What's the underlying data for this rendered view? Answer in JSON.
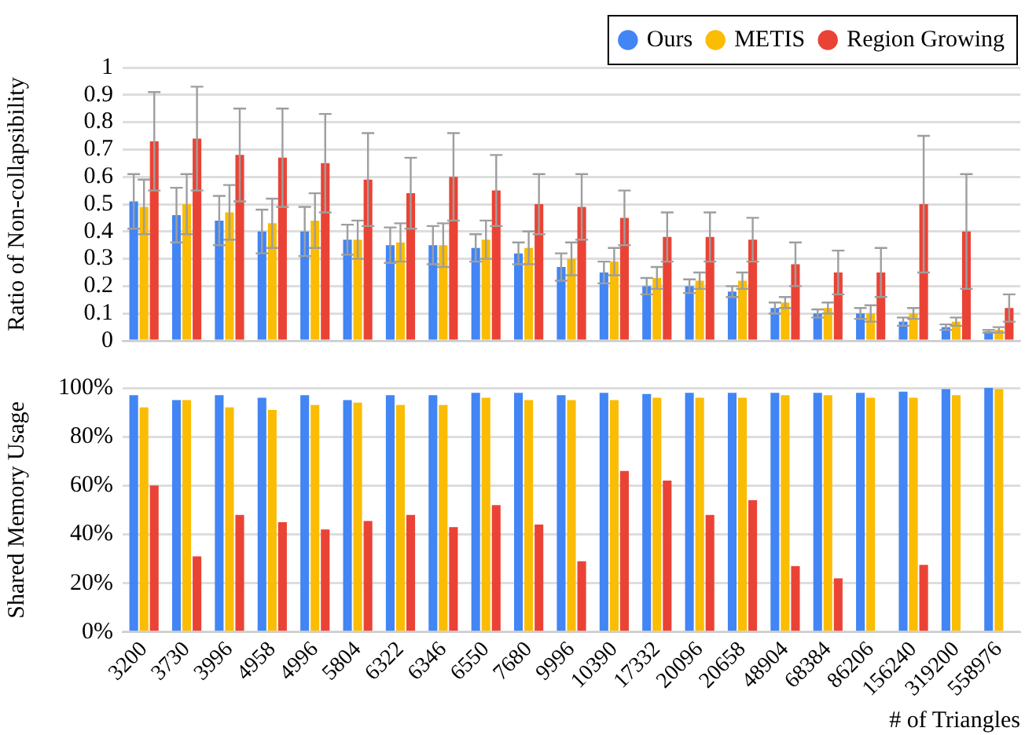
{
  "chart_data": [
    {
      "type": "bar",
      "ylabel": "Ratio of Non-collapsibility",
      "categories": [
        "3200",
        "3730",
        "3996",
        "4958",
        "4996",
        "5804",
        "6322",
        "6346",
        "6550",
        "7680",
        "9996",
        "10390",
        "17332",
        "20096",
        "20658",
        "48904",
        "68384",
        "86206",
        "156240",
        "319200",
        "558976"
      ],
      "series": [
        {
          "name": "Ours",
          "color": "#4285f4",
          "values": [
            0.51,
            0.46,
            0.44,
            0.4,
            0.4,
            0.37,
            0.35,
            0.35,
            0.34,
            0.32,
            0.27,
            0.25,
            0.2,
            0.2,
            0.18,
            0.12,
            0.1,
            0.1,
            0.07,
            0.05,
            0.035
          ],
          "errors": [
            0.1,
            0.1,
            0.09,
            0.08,
            0.09,
            0.055,
            0.065,
            0.07,
            0.05,
            0.04,
            0.05,
            0.04,
            0.03,
            0.025,
            0.02,
            0.02,
            0.015,
            0.02,
            0.015,
            0.01,
            0.005
          ]
        },
        {
          "name": "METIS",
          "color": "#fbbc04",
          "values": [
            0.49,
            0.5,
            0.47,
            0.43,
            0.44,
            0.37,
            0.36,
            0.35,
            0.37,
            0.34,
            0.3,
            0.29,
            0.23,
            0.22,
            0.22,
            0.14,
            0.12,
            0.1,
            0.1,
            0.07,
            0.04
          ],
          "errors": [
            0.1,
            0.11,
            0.1,
            0.09,
            0.1,
            0.07,
            0.07,
            0.08,
            0.07,
            0.06,
            0.06,
            0.05,
            0.04,
            0.03,
            0.03,
            0.02,
            0.02,
            0.03,
            0.02,
            0.015,
            0.01
          ]
        },
        {
          "name": "Region Growing",
          "color": "#ea4335",
          "values": [
            0.73,
            0.74,
            0.68,
            0.67,
            0.65,
            0.59,
            0.54,
            0.6,
            0.55,
            0.5,
            0.49,
            0.45,
            0.38,
            0.38,
            0.37,
            0.28,
            0.25,
            0.25,
            0.5,
            0.4,
            0.12
          ],
          "errors": [
            0.18,
            0.19,
            0.17,
            0.18,
            0.18,
            0.17,
            0.13,
            0.16,
            0.13,
            0.11,
            0.12,
            0.1,
            0.09,
            0.09,
            0.08,
            0.08,
            0.08,
            0.09,
            0.25,
            0.21,
            0.05
          ]
        }
      ],
      "ylim": [
        0,
        1
      ],
      "yticks": [
        0,
        0.1,
        0.2,
        0.3,
        0.4,
        0.5,
        0.6,
        0.7,
        0.8,
        0.9,
        1
      ],
      "grid": "y",
      "legend": "top right",
      "tick_labels": "y"
    },
    {
      "type": "bar",
      "ylabel": "Shared Memory Usage",
      "xlabel": "# of Triangles",
      "categories": [
        "3200",
        "3730",
        "3996",
        "4958",
        "4996",
        "5804",
        "6322",
        "6346",
        "6550",
        "7680",
        "9996",
        "10390",
        "17332",
        "20096",
        "20658",
        "48904",
        "68384",
        "86206",
        "156240",
        "319200",
        "558976"
      ],
      "series": [
        {
          "color": "#4285f4",
          "values": [
            97,
            95,
            97,
            96,
            97,
            95,
            97,
            97,
            98,
            98,
            97,
            98,
            97.5,
            98,
            98,
            98,
            98,
            98,
            98.5,
            99.5,
            100
          ]
        },
        {
          "color": "#fbbc04",
          "values": [
            92,
            95,
            92,
            91,
            93,
            94,
            93,
            93,
            96,
            95,
            95,
            95,
            96,
            96,
            96,
            97,
            97,
            96,
            96,
            97,
            99.5
          ]
        },
        {
          "color": "#ea4335",
          "values": [
            60,
            31,
            48,
            45,
            42,
            45.5,
            48,
            43,
            52,
            44,
            29,
            66,
            62,
            48,
            54,
            27,
            22,
            null,
            27.5,
            null,
            null
          ]
        }
      ],
      "ylim": [
        0,
        100
      ],
      "yticks": [
        {
          "value": 0,
          "label": "0%"
        },
        {
          "value": 20,
          "label": "20%"
        },
        {
          "value": 40,
          "label": "40%"
        },
        {
          "value": 60,
          "label": "60%"
        },
        {
          "value": 80,
          "label": "80%"
        },
        {
          "value": 100,
          "label": "100%"
        }
      ],
      "grid": "y",
      "legend": false
    }
  ]
}
